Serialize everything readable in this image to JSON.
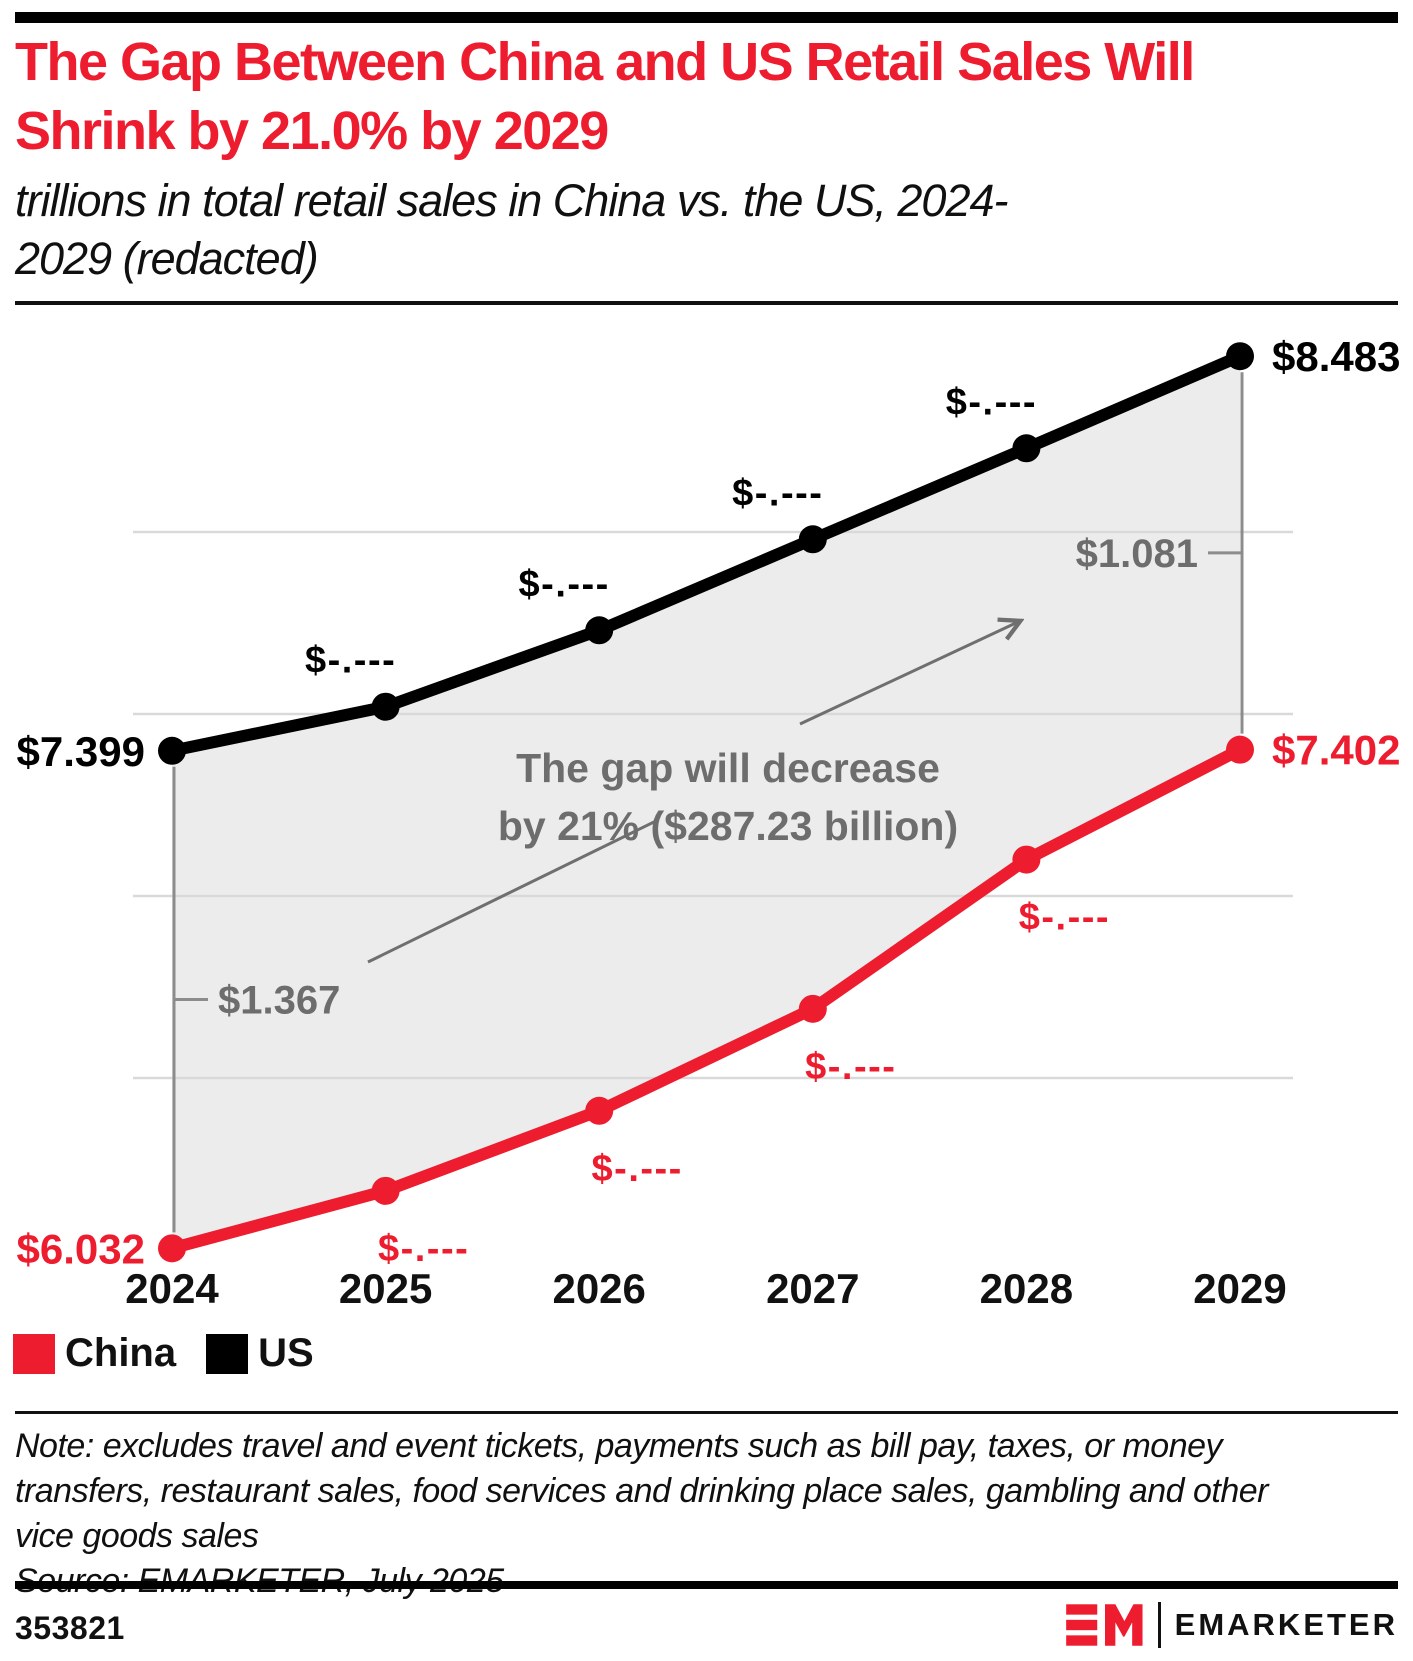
{
  "header": {
    "title": "The Gap Between China and US Retail Sales Will Shrink by 21.0% by 2029",
    "subtitle_lines": [
      "trillions in total retail sales in China vs. the US, 2024-",
      "2029 (redacted)"
    ]
  },
  "theme": {
    "accent_red": "#ed1c2e",
    "line_black": "#000000",
    "annotation_gray": "#6d6d6d",
    "band_fill": "#ececec",
    "gridline_color": "#d9d9d9"
  },
  "chart_data": {
    "type": "line",
    "title": "The Gap Between China and US Retail Sales Will Shrink by 21.0% by 2029",
    "unit": "trillions of US dollars",
    "x_labels": [
      "2024",
      "2025",
      "2026",
      "2027",
      "2028",
      "2029"
    ],
    "ylim": [
      5.9,
      8.7
    ],
    "y_gridlines": [
      6.5,
      7.0,
      7.5,
      8.0
    ],
    "grid": true,
    "legend_position": "bottom-left",
    "band_color": "#ececec",
    "gridline_color": "#d9d9d9",
    "series": [
      {
        "name": "China",
        "color": "#ed1c2e",
        "values": [
          6.032,
          6.19,
          6.41,
          6.69,
          7.1,
          7.402
        ],
        "labels": [
          "$6.032",
          "$-.---",
          "$-.---",
          "$-.---",
          "$-.---",
          "$7.402"
        ]
      },
      {
        "name": "US",
        "color": "#000000",
        "values": [
          7.399,
          7.52,
          7.73,
          7.98,
          8.23,
          8.483
        ],
        "labels": [
          "$7.399",
          "$-.---",
          "$-.---",
          "$-.---",
          "$-.---",
          "$8.483"
        ]
      }
    ],
    "gap_annotations": [
      {
        "x_label": "2024",
        "label": "$1.367",
        "side": "right"
      },
      {
        "x_label": "2029",
        "label": "$1.081",
        "side": "left"
      }
    ],
    "annotation": {
      "lines": [
        "The gap will decrease",
        "by 21% ($287.23 billion)"
      ]
    }
  },
  "legend": {
    "items": [
      {
        "label": "China",
        "color": "#ed1c2e"
      },
      {
        "label": "US",
        "color": "#000000"
      }
    ]
  },
  "note": {
    "lines": [
      "Note: excludes travel and event tickets, payments such as bill pay, taxes, or money",
      "transfers, restaurant sales, food services and drinking place sales, gambling and other",
      "vice goods sales"
    ],
    "source": "Source: EMARKETER, July 2025"
  },
  "footer": {
    "chart_id": "353821",
    "brand": "EMARKETER"
  }
}
